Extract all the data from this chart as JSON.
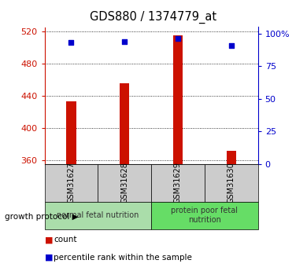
{
  "title": "GDS880 / 1374779_at",
  "samples": [
    "GSM31627",
    "GSM31628",
    "GSM31629",
    "GSM31630"
  ],
  "count_values": [
    433,
    455,
    515,
    371
  ],
  "percentile_values": [
    93,
    94,
    96,
    91
  ],
  "ylim_left": [
    355,
    525
  ],
  "yticks_left": [
    360,
    400,
    440,
    480,
    520
  ],
  "yticks_right": [
    0,
    25,
    50,
    75,
    100
  ],
  "ylim_right": [
    0,
    105
  ],
  "bar_color": "#cc1100",
  "dot_color": "#0000cc",
  "group1_label": "normal fetal nutrition",
  "group2_label": "protein poor fetal\nnutrition",
  "group1_color": "#aaddaa",
  "group2_color": "#66dd66",
  "xlabel_protocol": "growth protocol",
  "legend_count": "count",
  "legend_percentile": "percentile rank within the sample",
  "tick_label_color_left": "#cc1100",
  "tick_label_color_right": "#0000cc",
  "bar_width": 0.18,
  "label_box_color": "#cccccc",
  "fig_width": 3.9,
  "fig_height": 3.45,
  "dpi": 100
}
